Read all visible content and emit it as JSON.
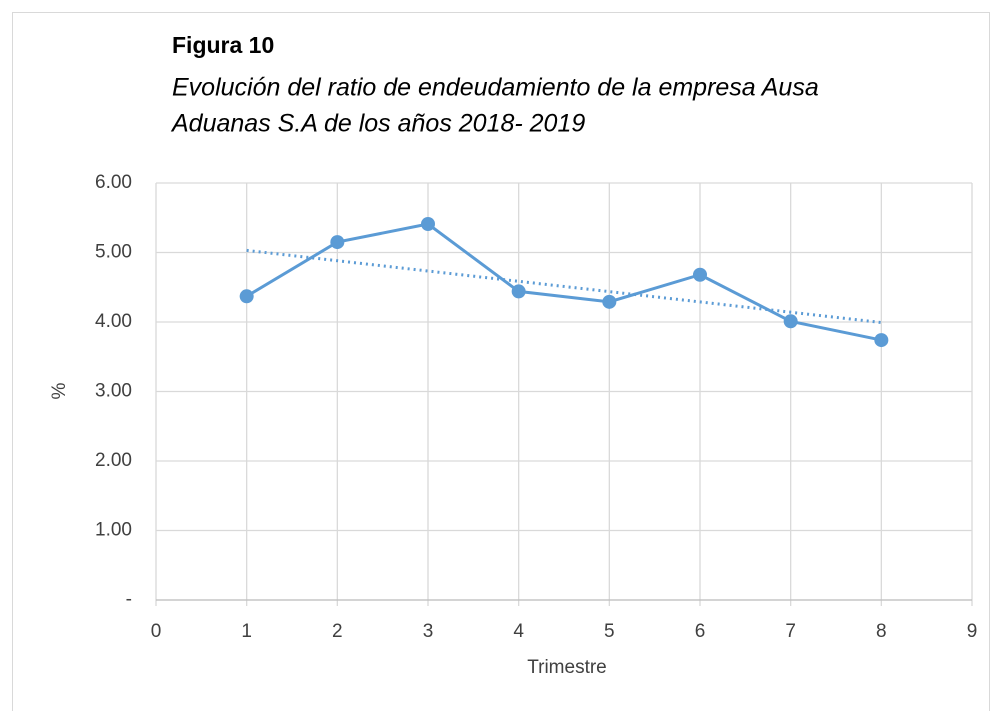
{
  "chart_data": {
    "type": "line",
    "title": "Figura  10",
    "subtitle": [
      "Evolución del ratio de endeudamiento de la empresa Ausa",
      "Aduanas S.A de los años 2018- 2019"
    ],
    "x_label": "Trimestre",
    "y_label": "%",
    "x": [
      1,
      2,
      3,
      4,
      5,
      6,
      7,
      8
    ],
    "series": [
      {
        "color": "#5b9bd5",
        "values": [
          4.37,
          5.15,
          5.41,
          4.44,
          4.29,
          4.68,
          4.01,
          3.74
        ]
      }
    ],
    "trendline": "linear",
    "xlim": [
      0,
      9
    ],
    "xticks": [
      0,
      1,
      2,
      3,
      4,
      5,
      6,
      7,
      8,
      9
    ],
    "ylim": [
      0,
      6
    ],
    "yticks": [
      {
        "value": 0,
        "label": "-"
      },
      {
        "value": 1,
        "label": "1.00"
      },
      {
        "value": 2,
        "label": "2.00"
      },
      {
        "value": 3,
        "label": "3.00"
      },
      {
        "value": 4,
        "label": "4.00"
      },
      {
        "value": 5,
        "label": "5.00"
      },
      {
        "value": 6,
        "label": "6.00"
      }
    ],
    "grid": true
  }
}
